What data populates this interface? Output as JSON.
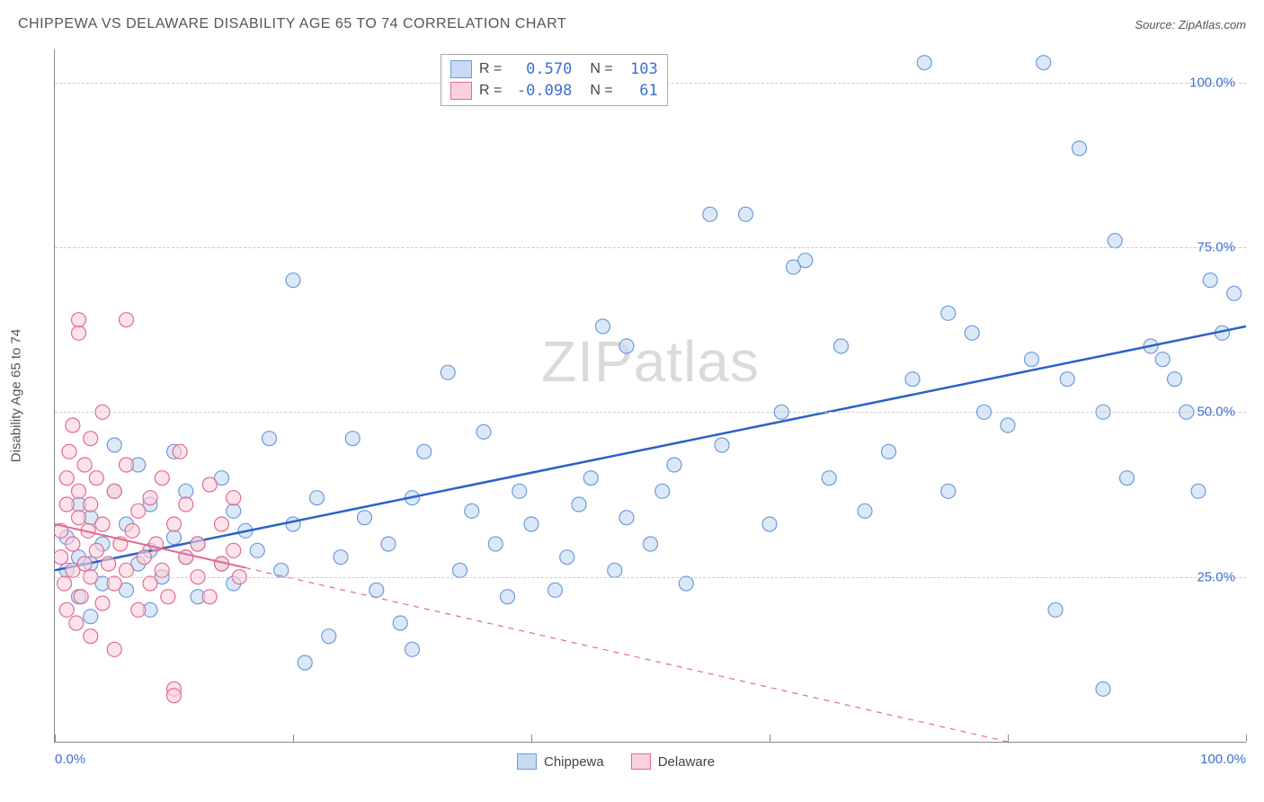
{
  "title": "CHIPPEWA VS DELAWARE DISABILITY AGE 65 TO 74 CORRELATION CHART",
  "source": "Source: ZipAtlas.com",
  "watermark": "ZIPatlas",
  "y_axis_label": "Disability Age 65 to 74",
  "chart": {
    "type": "scatter",
    "xlim": [
      0,
      100
    ],
    "ylim": [
      0,
      105
    ],
    "ytick_values": [
      25,
      50,
      75,
      100
    ],
    "ytick_labels": [
      "25.0%",
      "50.0%",
      "75.0%",
      "100.0%"
    ],
    "xtick_values": [
      0,
      20,
      40,
      60,
      80,
      100
    ],
    "xtick_labels_shown": {
      "0": "0.0%",
      "100": "100.0%"
    },
    "grid_color": "#cccccc",
    "background_color": "#ffffff",
    "marker_radius": 8,
    "marker_stroke_width": 1.2,
    "series": [
      {
        "name": "Chippewa",
        "fill": "#c7dbf5",
        "stroke": "#6e9ad8",
        "fill_opacity": 0.65,
        "trend": {
          "type": "solid",
          "color": "#2b62c9",
          "width": 2.5,
          "x1": 0,
          "y1": 26,
          "x2": 100,
          "y2": 63
        },
        "points": [
          [
            1,
            26
          ],
          [
            1,
            31
          ],
          [
            2,
            22
          ],
          [
            2,
            28
          ],
          [
            2,
            36
          ],
          [
            3,
            19
          ],
          [
            3,
            27
          ],
          [
            3,
            34
          ],
          [
            4,
            24
          ],
          [
            4,
            30
          ],
          [
            5,
            38
          ],
          [
            5,
            45
          ],
          [
            6,
            23
          ],
          [
            6,
            33
          ],
          [
            7,
            27
          ],
          [
            7,
            42
          ],
          [
            8,
            20
          ],
          [
            8,
            29
          ],
          [
            8,
            36
          ],
          [
            9,
            25
          ],
          [
            10,
            31
          ],
          [
            10,
            44
          ],
          [
            11,
            28
          ],
          [
            11,
            38
          ],
          [
            12,
            22
          ],
          [
            12,
            30
          ],
          [
            14,
            27
          ],
          [
            14,
            40
          ],
          [
            15,
            24
          ],
          [
            15,
            35
          ],
          [
            16,
            32
          ],
          [
            17,
            29
          ],
          [
            18,
            46
          ],
          [
            19,
            26
          ],
          [
            20,
            33
          ],
          [
            20,
            70
          ],
          [
            21,
            12
          ],
          [
            22,
            37
          ],
          [
            23,
            16
          ],
          [
            24,
            28
          ],
          [
            25,
            46
          ],
          [
            26,
            34
          ],
          [
            27,
            23
          ],
          [
            28,
            30
          ],
          [
            29,
            18
          ],
          [
            30,
            37
          ],
          [
            30,
            14
          ],
          [
            31,
            44
          ],
          [
            33,
            56
          ],
          [
            34,
            26
          ],
          [
            35,
            35
          ],
          [
            36,
            47
          ],
          [
            37,
            30
          ],
          [
            38,
            22
          ],
          [
            39,
            38
          ],
          [
            40,
            33
          ],
          [
            42,
            23
          ],
          [
            43,
            28
          ],
          [
            44,
            36
          ],
          [
            45,
            40
          ],
          [
            46,
            63
          ],
          [
            47,
            26
          ],
          [
            48,
            34
          ],
          [
            50,
            30
          ],
          [
            51,
            38
          ],
          [
            53,
            24
          ],
          [
            55,
            80
          ],
          [
            56,
            45
          ],
          [
            58,
            80
          ],
          [
            60,
            33
          ],
          [
            61,
            50
          ],
          [
            62,
            72
          ],
          [
            63,
            73
          ],
          [
            65,
            40
          ],
          [
            66,
            60
          ],
          [
            70,
            44
          ],
          [
            72,
            55
          ],
          [
            73,
            103
          ],
          [
            75,
            38
          ],
          [
            77,
            62
          ],
          [
            78,
            50
          ],
          [
            80,
            48
          ],
          [
            82,
            58
          ],
          [
            83,
            103
          ],
          [
            84,
            20
          ],
          [
            85,
            55
          ],
          [
            86,
            90
          ],
          [
            88,
            50
          ],
          [
            89,
            76
          ],
          [
            90,
            40
          ],
          [
            92,
            60
          ],
          [
            93,
            58
          ],
          [
            94,
            55
          ],
          [
            95,
            50
          ],
          [
            96,
            38
          ],
          [
            97,
            70
          ],
          [
            98,
            62
          ],
          [
            99,
            68
          ],
          [
            88,
            8
          ],
          [
            75,
            65
          ],
          [
            68,
            35
          ],
          [
            52,
            42
          ],
          [
            48,
            60
          ]
        ]
      },
      {
        "name": "Delaware",
        "fill": "#fbd0dd",
        "stroke": "#e36a8f",
        "fill_opacity": 0.6,
        "trend": {
          "type": "solid_then_dash",
          "color": "#e36a8f",
          "width": 2,
          "x1": 0,
          "y1": 33,
          "x2": 80,
          "y2": 0,
          "solid_until_x": 16
        },
        "points": [
          [
            0.5,
            28
          ],
          [
            0.5,
            32
          ],
          [
            0.8,
            24
          ],
          [
            1,
            36
          ],
          [
            1,
            40
          ],
          [
            1,
            20
          ],
          [
            1.2,
            44
          ],
          [
            1.5,
            26
          ],
          [
            1.5,
            30
          ],
          [
            1.5,
            48
          ],
          [
            1.8,
            18
          ],
          [
            2,
            34
          ],
          [
            2,
            38
          ],
          [
            2,
            62
          ],
          [
            2,
            64
          ],
          [
            2.2,
            22
          ],
          [
            2.5,
            27
          ],
          [
            2.5,
            42
          ],
          [
            2.8,
            32
          ],
          [
            3,
            16
          ],
          [
            3,
            25
          ],
          [
            3,
            36
          ],
          [
            3,
            46
          ],
          [
            3.5,
            29
          ],
          [
            3.5,
            40
          ],
          [
            4,
            21
          ],
          [
            4,
            33
          ],
          [
            4,
            50
          ],
          [
            4.5,
            27
          ],
          [
            5,
            14
          ],
          [
            5,
            24
          ],
          [
            5,
            38
          ],
          [
            5.5,
            30
          ],
          [
            6,
            64
          ],
          [
            6,
            26
          ],
          [
            6,
            42
          ],
          [
            6.5,
            32
          ],
          [
            7,
            20
          ],
          [
            7,
            35
          ],
          [
            7.5,
            28
          ],
          [
            8,
            24
          ],
          [
            8,
            37
          ],
          [
            8.5,
            30
          ],
          [
            9,
            26
          ],
          [
            9,
            40
          ],
          [
            9.5,
            22
          ],
          [
            10,
            8
          ],
          [
            10,
            33
          ],
          [
            10.5,
            44
          ],
          [
            11,
            28
          ],
          [
            11,
            36
          ],
          [
            12,
            25
          ],
          [
            12,
            30
          ],
          [
            13,
            39
          ],
          [
            13,
            22
          ],
          [
            14,
            27
          ],
          [
            14,
            33
          ],
          [
            15,
            29
          ],
          [
            15.5,
            25
          ],
          [
            15,
            37
          ],
          [
            10,
            7
          ]
        ]
      }
    ]
  },
  "legend_stats": {
    "rows": [
      {
        "swatch_fill": "#c7dbf5",
        "swatch_stroke": "#6e9ad8",
        "r": "0.570",
        "n": "103"
      },
      {
        "swatch_fill": "#fbd0dd",
        "swatch_stroke": "#e36a8f",
        "r": "-0.098",
        "n": "61"
      }
    ]
  },
  "legend_bottom": {
    "items": [
      {
        "label": "Chippewa",
        "fill": "#c7dbf5",
        "stroke": "#6e9ad8"
      },
      {
        "label": "Delaware",
        "fill": "#fbd0dd",
        "stroke": "#e36a8f"
      }
    ]
  }
}
